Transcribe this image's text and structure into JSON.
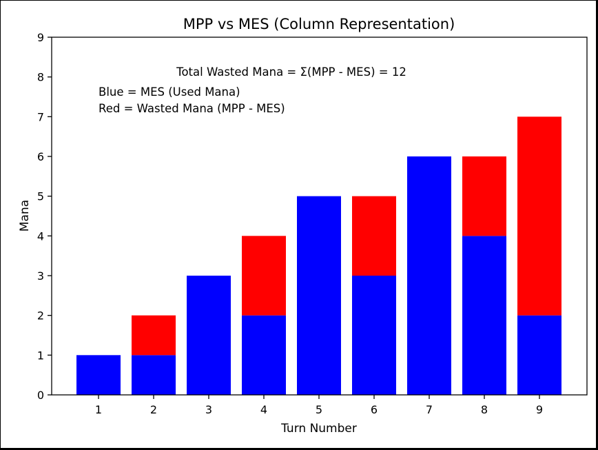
{
  "chart_data": {
    "type": "bar",
    "stacked": true,
    "title": "MPP vs MES (Column Representation)",
    "xlabel": "Turn Number",
    "ylabel": "Mana",
    "categories": [
      "1",
      "2",
      "3",
      "4",
      "5",
      "6",
      "7",
      "8",
      "9"
    ],
    "series": [
      {
        "key": "mes",
        "values": [
          1,
          1,
          3,
          2,
          5,
          3,
          6,
          4,
          2
        ],
        "color": "#0000ff"
      },
      {
        "key": "wasted",
        "values": [
          0,
          1,
          0,
          2,
          0,
          2,
          0,
          2,
          5
        ],
        "color": "#ff0000"
      }
    ],
    "ylim": [
      0,
      9
    ],
    "yticks": [
      "0",
      "1",
      "2",
      "3",
      "4",
      "5",
      "6",
      "7",
      "8",
      "9"
    ],
    "grid": false,
    "annotations": {
      "total": "Total Wasted Mana = Σ(MPP - MES) = 12",
      "blue_note": "Blue = MES (Used Mana)",
      "red_note": "Red = Wasted Mana (MPP - MES)"
    }
  }
}
